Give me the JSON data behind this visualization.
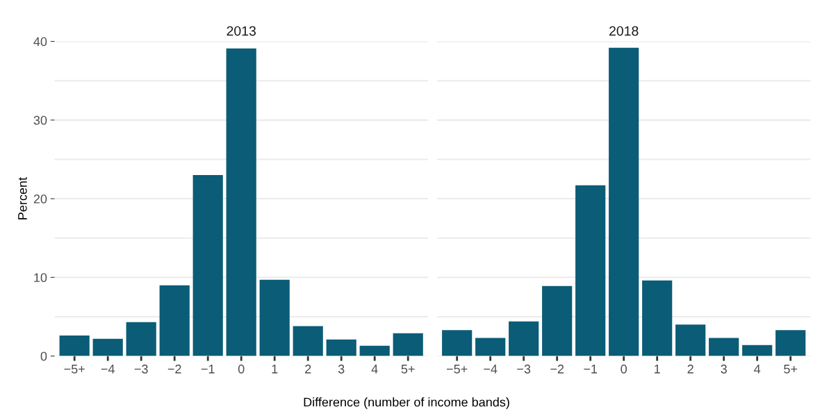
{
  "chart_data": [
    {
      "type": "bar",
      "title": "2013",
      "xlabel": "Difference (number of income bands)",
      "ylabel": "Percent",
      "categories": [
        "−5+",
        "−4",
        "−3",
        "−2",
        "−1",
        "0",
        "1",
        "2",
        "3",
        "4",
        "5+"
      ],
      "values": [
        2.6,
        2.2,
        4.3,
        9.0,
        23.0,
        39.1,
        9.7,
        3.8,
        2.1,
        1.3,
        2.9
      ],
      "color": "#0b5c76",
      "ylim": [
        0,
        40
      ],
      "yticks": [
        0,
        {
          "value": 5,
          "label": null
        },
        10,
        {
          "value": 15,
          "label": null
        },
        20,
        {
          "value": 25,
          "label": null
        },
        30,
        {
          "value": 35,
          "label": null
        },
        40
      ],
      "grid": "y",
      "legend": false
    },
    {
      "type": "bar",
      "title": "2018",
      "categories": [
        "−5+",
        "−4",
        "−3",
        "−2",
        "−1",
        "0",
        "1",
        "2",
        "3",
        "4",
        "5+"
      ],
      "values": [
        3.3,
        2.3,
        4.4,
        8.9,
        21.7,
        39.2,
        9.6,
        4.0,
        2.3,
        1.4,
        3.3
      ],
      "color": "#0b5c76",
      "ylim": [
        0,
        40
      ],
      "yticks": [
        0,
        {
          "value": 5,
          "label": null
        },
        10,
        {
          "value": 15,
          "label": null
        },
        20,
        {
          "value": 25,
          "label": null
        },
        30,
        {
          "value": 35,
          "label": null
        },
        40
      ],
      "grid": "y",
      "legend": false,
      "tick_labels": "x"
    }
  ]
}
